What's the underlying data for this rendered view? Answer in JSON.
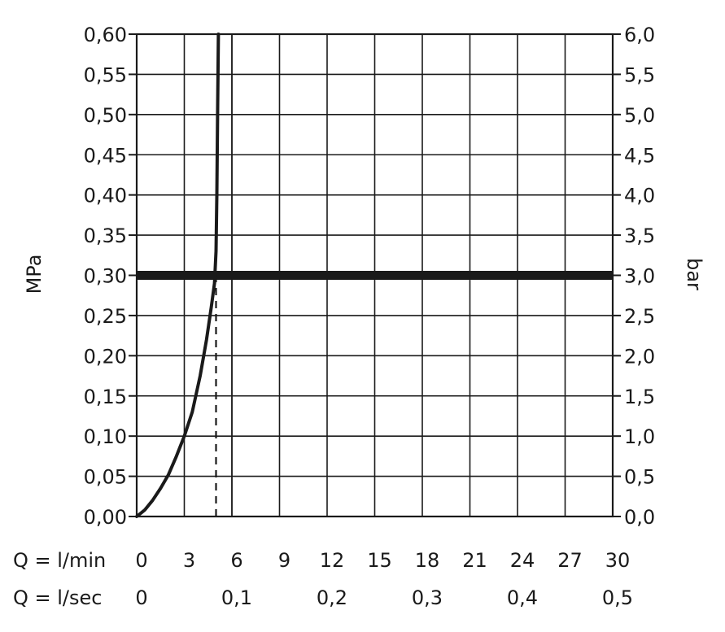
{
  "chart_data": {
    "type": "line",
    "left_axis": {
      "label": "MPa",
      "ylim": [
        0,
        0.6
      ],
      "ticks": [
        0,
        0.05,
        0.1,
        0.15,
        0.2,
        0.25,
        0.3,
        0.35,
        0.4,
        0.45,
        0.5,
        0.55,
        0.6
      ],
      "tick_labels": [
        "0,00",
        "0,05",
        "0,10",
        "0,15",
        "0,20",
        "0,25",
        "0,30",
        "0,35",
        "0,40",
        "0,45",
        "0,50",
        "0,55",
        "0,60"
      ]
    },
    "right_axis": {
      "label": "bar",
      "ylim": [
        0,
        6
      ],
      "ticks": [
        0,
        0.5,
        1,
        1.5,
        2,
        2.5,
        3,
        3.5,
        4,
        4.5,
        5,
        5.5,
        6
      ],
      "tick_labels": [
        "0,0",
        "0,5",
        "1,0",
        "1,5",
        "2,0",
        "2,5",
        "3,0",
        "3,5",
        "4,0",
        "4,5",
        "5,0",
        "5,5",
        "6,0"
      ]
    },
    "x_axis_lmin": {
      "label": "Q = l/min",
      "xlim": [
        0,
        30
      ],
      "ticks": [
        0,
        3,
        6,
        9,
        12,
        15,
        18,
        21,
        24,
        27,
        30
      ],
      "tick_labels": [
        "0",
        "3",
        "6",
        "9",
        "12",
        "15",
        "18",
        "21",
        "24",
        "27",
        "30"
      ]
    },
    "x_axis_lsec": {
      "label": "Q = l/sec",
      "ticks": [
        0,
        0.1,
        0.2,
        0.3,
        0.4,
        0.5
      ],
      "tick_labels": [
        "0",
        "0,1",
        "0,2",
        "0,3",
        "0,4",
        "0,5"
      ]
    },
    "grid": true,
    "series": [
      {
        "style": "solid",
        "x": [
          0,
          0.5,
          1,
          1.5,
          2,
          2.5,
          3,
          3.5,
          4,
          4.4,
          4.7,
          4.9,
          5.0,
          5.05,
          5.1,
          5.15
        ],
        "y": [
          0,
          0.008,
          0.02,
          0.035,
          0.052,
          0.075,
          0.1,
          0.13,
          0.175,
          0.22,
          0.26,
          0.29,
          0.33,
          0.4,
          0.5,
          0.6
        ]
      }
    ],
    "reference_lines": [
      {
        "orientation": "horizontal",
        "style": "thick",
        "y": 0.3
      },
      {
        "orientation": "vertical",
        "style": "dashed",
        "x": 5.0,
        "y_from": 0,
        "y_to": 0.3
      }
    ]
  }
}
